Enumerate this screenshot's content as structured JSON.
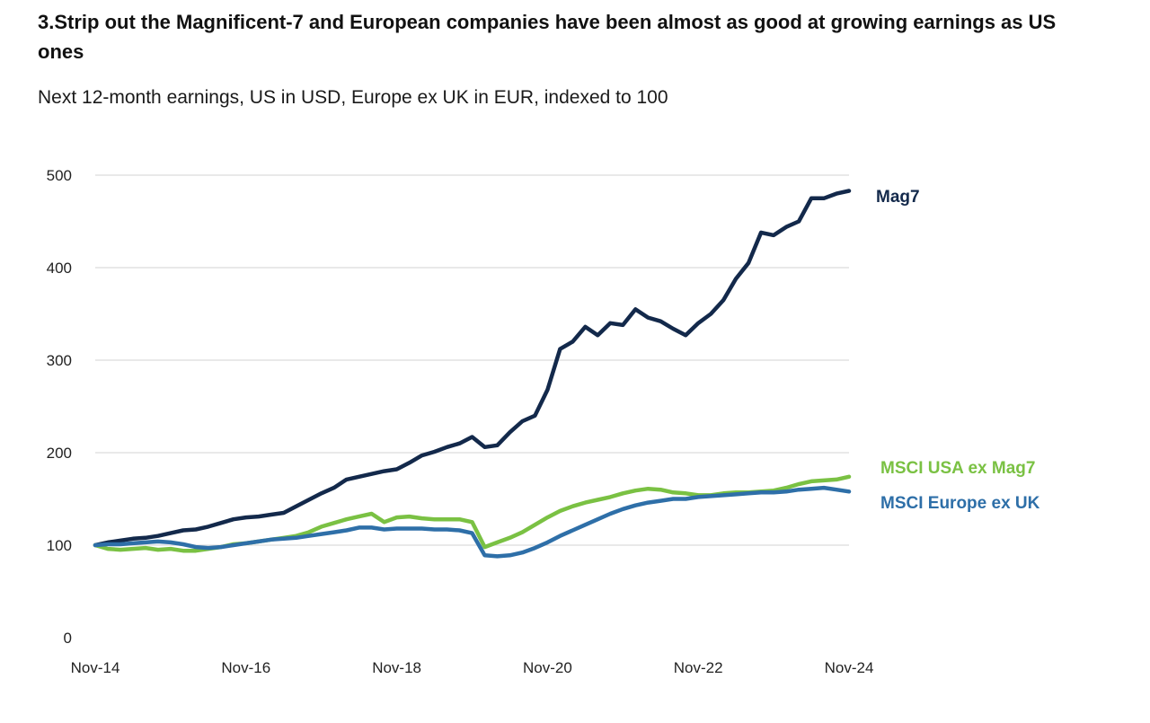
{
  "chart_data": {
    "type": "line",
    "title": "3.Strip out the Magnificent-7 and European companies have been almost as good at growing earnings as US ones",
    "subtitle": "Next 12-month earnings, US in USD, Europe ex UK in EUR, indexed to 100",
    "xlabel": "",
    "ylabel": "",
    "x_ticks": [
      "Nov-14",
      "Nov-16",
      "Nov-18",
      "Nov-20",
      "Nov-22",
      "Nov-24"
    ],
    "x_range": [
      0,
      120
    ],
    "x_unit": "months since Nov-14",
    "ylim": [
      0,
      500
    ],
    "y_ticks": [
      0,
      100,
      200,
      300,
      400,
      500
    ],
    "grid": "horizontal",
    "legend": "direct labels at right",
    "x": [
      0,
      2,
      4,
      6,
      8,
      10,
      12,
      14,
      16,
      18,
      20,
      22,
      24,
      26,
      28,
      30,
      32,
      34,
      36,
      38,
      40,
      42,
      44,
      46,
      48,
      50,
      52,
      54,
      56,
      58,
      60,
      62,
      64,
      66,
      68,
      70,
      72,
      74,
      76,
      78,
      80,
      82,
      84,
      86,
      88,
      90,
      92,
      94,
      96,
      98,
      100,
      102,
      104,
      106,
      108,
      110,
      112,
      114,
      116,
      118,
      120
    ],
    "series": [
      {
        "name": "Mag7",
        "color": "#13294b",
        "values": [
          100,
          103,
          105,
          107,
          108,
          110,
          113,
          116,
          117,
          120,
          124,
          128,
          130,
          131,
          133,
          135,
          142,
          149,
          156,
          162,
          171,
          174,
          177,
          180,
          182,
          189,
          197,
          201,
          206,
          210,
          217,
          206,
          208,
          222,
          234,
          240,
          268,
          312,
          320,
          336,
          327,
          340,
          338,
          355,
          346,
          342,
          334,
          327,
          340,
          350,
          365,
          388,
          405,
          438,
          435,
          444,
          450,
          475,
          475,
          480,
          483
        ]
      },
      {
        "name": "MSCI USA ex Mag7",
        "color": "#7ac143",
        "values": [
          100,
          96,
          95,
          96,
          97,
          95,
          96,
          94,
          94,
          96,
          98,
          101,
          102,
          104,
          106,
          108,
          110,
          114,
          120,
          124,
          128,
          131,
          134,
          125,
          130,
          131,
          129,
          128,
          128,
          128,
          125,
          98,
          103,
          108,
          114,
          122,
          130,
          137,
          142,
          146,
          149,
          152,
          156,
          159,
          161,
          160,
          157,
          156,
          154,
          154,
          156,
          157,
          157,
          158,
          159,
          162,
          166,
          169,
          170,
          171,
          174
        ]
      },
      {
        "name": "MSCI Europe ex UK",
        "color": "#2e6fa8",
        "values": [
          100,
          101,
          101,
          102,
          103,
          104,
          103,
          101,
          98,
          97,
          98,
          100,
          102,
          104,
          106,
          107,
          108,
          110,
          112,
          114,
          116,
          119,
          119,
          117,
          118,
          118,
          118,
          117,
          117,
          116,
          113,
          89,
          88,
          89,
          92,
          97,
          103,
          110,
          116,
          122,
          128,
          134,
          139,
          143,
          146,
          148,
          150,
          150,
          152,
          153,
          154,
          155,
          156,
          157,
          157,
          158,
          160,
          161,
          162,
          160,
          158
        ]
      }
    ]
  }
}
